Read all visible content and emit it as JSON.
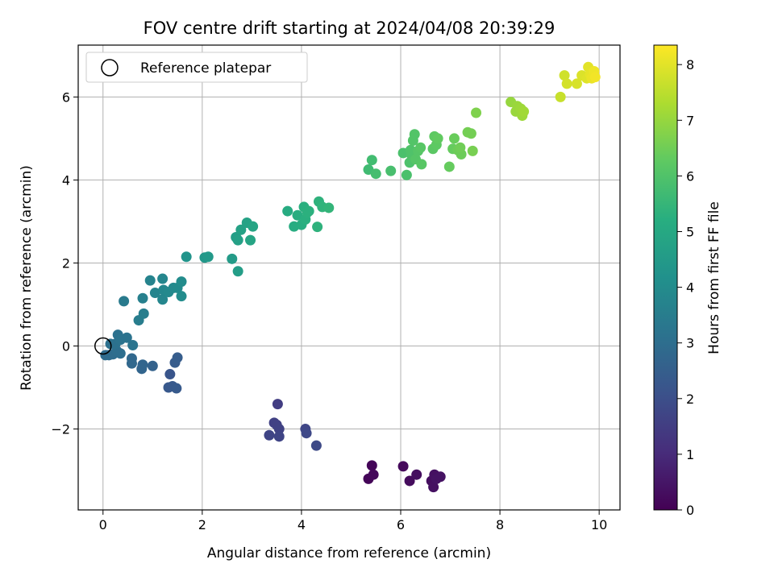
{
  "chart_data": {
    "type": "scatter",
    "title": "FOV centre drift starting at 2024/04/08 20:39:29",
    "xlabel": "Angular distance from reference (arcmin)",
    "ylabel": "Rotation from reference (arcmin)",
    "xlim": [
      -0.5,
      10.42
    ],
    "ylim": [
      -3.95,
      7.25
    ],
    "xticks": [
      0,
      2,
      4,
      6,
      8,
      10
    ],
    "yticks": [
      -2,
      0,
      2,
      4,
      6
    ],
    "grid": true,
    "colormap": "viridis",
    "colorbar": {
      "label": "Hours from first FF file",
      "range": [
        0,
        8.35
      ],
      "ticks": [
        0,
        1,
        2,
        3,
        4,
        5,
        6,
        7,
        8
      ]
    },
    "legend": {
      "placement": "top-left",
      "entries": [
        "Reference platepar"
      ]
    },
    "reference_point": {
      "x": 0,
      "y": 0
    },
    "points": [
      {
        "x": 5.35,
        "y": -3.2,
        "h": 0.1
      },
      {
        "x": 5.45,
        "y": -3.1,
        "h": 0.15
      },
      {
        "x": 5.42,
        "y": -2.88,
        "h": 0.1
      },
      {
        "x": 6.05,
        "y": -2.9,
        "h": 0.2
      },
      {
        "x": 6.18,
        "y": -3.25,
        "h": 0.25
      },
      {
        "x": 6.32,
        "y": -3.1,
        "h": 0.3
      },
      {
        "x": 6.62,
        "y": -3.25,
        "h": 0.3
      },
      {
        "x": 6.66,
        "y": -3.4,
        "h": 0.35
      },
      {
        "x": 6.68,
        "y": -3.1,
        "h": 0.35
      },
      {
        "x": 6.72,
        "y": -3.2,
        "h": 0.4
      },
      {
        "x": 6.8,
        "y": -3.15,
        "h": 0.4
      },
      {
        "x": 3.52,
        "y": -1.4,
        "h": 1.5
      },
      {
        "x": 3.45,
        "y": -1.85,
        "h": 1.6
      },
      {
        "x": 3.5,
        "y": -1.9,
        "h": 1.6
      },
      {
        "x": 3.55,
        "y": -2.0,
        "h": 1.65
      },
      {
        "x": 3.35,
        "y": -2.15,
        "h": 1.7
      },
      {
        "x": 3.55,
        "y": -2.18,
        "h": 1.7
      },
      {
        "x": 4.08,
        "y": -2.0,
        "h": 1.75
      },
      {
        "x": 4.1,
        "y": -2.1,
        "h": 1.8
      },
      {
        "x": 4.3,
        "y": -2.4,
        "h": 1.85
      },
      {
        "x": 1.35,
        "y": -0.68,
        "h": 2.2
      },
      {
        "x": 1.32,
        "y": -1.0,
        "h": 2.3
      },
      {
        "x": 1.4,
        "y": -0.97,
        "h": 2.3
      },
      {
        "x": 1.48,
        "y": -1.02,
        "h": 2.35
      },
      {
        "x": 1.45,
        "y": -0.4,
        "h": 2.4
      },
      {
        "x": 1.5,
        "y": -0.28,
        "h": 2.45
      },
      {
        "x": 1.0,
        "y": -0.48,
        "h": 2.6
      },
      {
        "x": 0.8,
        "y": -0.45,
        "h": 2.7
      },
      {
        "x": 0.78,
        "y": -0.55,
        "h": 2.7
      },
      {
        "x": 0.58,
        "y": -0.3,
        "h": 2.8
      },
      {
        "x": 0.58,
        "y": -0.42,
        "h": 2.8
      },
      {
        "x": 0.05,
        "y": -0.22,
        "h": 2.9
      },
      {
        "x": 0.12,
        "y": -0.22,
        "h": 2.9
      },
      {
        "x": 0.2,
        "y": -0.2,
        "h": 2.95
      },
      {
        "x": 0.28,
        "y": -0.12,
        "h": 3.0
      },
      {
        "x": 0.35,
        "y": -0.18,
        "h": 3.0
      },
      {
        "x": 0.15,
        "y": 0.05,
        "h": 3.05
      },
      {
        "x": 0.25,
        "y": 0.05,
        "h": 3.1
      },
      {
        "x": 0.3,
        "y": 0.27,
        "h": 3.1
      },
      {
        "x": 0.35,
        "y": 0.15,
        "h": 3.15
      },
      {
        "x": 0.48,
        "y": 0.2,
        "h": 3.15
      },
      {
        "x": 0.6,
        "y": 0.02,
        "h": 3.2
      },
      {
        "x": 0.42,
        "y": 1.08,
        "h": 3.4
      },
      {
        "x": 0.72,
        "y": 0.62,
        "h": 3.5
      },
      {
        "x": 0.82,
        "y": 0.78,
        "h": 3.55
      },
      {
        "x": 0.8,
        "y": 1.15,
        "h": 3.6
      },
      {
        "x": 0.95,
        "y": 1.58,
        "h": 3.7
      },
      {
        "x": 1.05,
        "y": 1.28,
        "h": 3.75
      },
      {
        "x": 1.2,
        "y": 1.62,
        "h": 3.8
      },
      {
        "x": 1.2,
        "y": 1.12,
        "h": 3.8
      },
      {
        "x": 1.22,
        "y": 1.35,
        "h": 3.85
      },
      {
        "x": 1.32,
        "y": 1.3,
        "h": 3.9
      },
      {
        "x": 1.42,
        "y": 1.4,
        "h": 3.9
      },
      {
        "x": 1.5,
        "y": 1.4,
        "h": 3.95
      },
      {
        "x": 1.58,
        "y": 1.55,
        "h": 4.0
      },
      {
        "x": 1.58,
        "y": 1.2,
        "h": 4.0
      },
      {
        "x": 1.68,
        "y": 2.15,
        "h": 4.3
      },
      {
        "x": 2.05,
        "y": 2.13,
        "h": 4.4
      },
      {
        "x": 2.12,
        "y": 2.15,
        "h": 4.45
      },
      {
        "x": 2.6,
        "y": 2.1,
        "h": 4.55
      },
      {
        "x": 2.72,
        "y": 1.8,
        "h": 4.6
      },
      {
        "x": 2.68,
        "y": 2.62,
        "h": 4.65
      },
      {
        "x": 2.72,
        "y": 2.55,
        "h": 4.7
      },
      {
        "x": 2.78,
        "y": 2.8,
        "h": 4.75
      },
      {
        "x": 2.9,
        "y": 2.97,
        "h": 4.8
      },
      {
        "x": 2.97,
        "y": 2.55,
        "h": 4.85
      },
      {
        "x": 3.02,
        "y": 2.88,
        "h": 4.85
      },
      {
        "x": 3.72,
        "y": 3.25,
        "h": 5.1
      },
      {
        "x": 3.85,
        "y": 2.88,
        "h": 5.15
      },
      {
        "x": 3.92,
        "y": 3.15,
        "h": 5.2
      },
      {
        "x": 4.0,
        "y": 2.92,
        "h": 5.2
      },
      {
        "x": 4.05,
        "y": 3.35,
        "h": 5.25
      },
      {
        "x": 4.08,
        "y": 3.05,
        "h": 5.25
      },
      {
        "x": 4.12,
        "y": 3.22,
        "h": 5.3
      },
      {
        "x": 4.15,
        "y": 3.25,
        "h": 5.3
      },
      {
        "x": 4.32,
        "y": 2.87,
        "h": 5.35
      },
      {
        "x": 4.35,
        "y": 3.48,
        "h": 5.35
      },
      {
        "x": 4.42,
        "y": 3.35,
        "h": 5.4
      },
      {
        "x": 4.55,
        "y": 3.33,
        "h": 5.45
      },
      {
        "x": 5.35,
        "y": 4.25,
        "h": 5.7
      },
      {
        "x": 5.42,
        "y": 4.48,
        "h": 5.75
      },
      {
        "x": 5.5,
        "y": 4.15,
        "h": 5.8
      },
      {
        "x": 5.8,
        "y": 4.22,
        "h": 5.85
      },
      {
        "x": 6.05,
        "y": 4.65,
        "h": 5.9
      },
      {
        "x": 6.12,
        "y": 4.12,
        "h": 5.9
      },
      {
        "x": 6.18,
        "y": 4.42,
        "h": 5.95
      },
      {
        "x": 6.2,
        "y": 4.72,
        "h": 6.0
      },
      {
        "x": 6.22,
        "y": 4.6,
        "h": 6.0
      },
      {
        "x": 6.25,
        "y": 4.95,
        "h": 6.05
      },
      {
        "x": 6.28,
        "y": 5.1,
        "h": 6.05
      },
      {
        "x": 6.3,
        "y": 4.5,
        "h": 6.1
      },
      {
        "x": 6.35,
        "y": 4.7,
        "h": 6.1
      },
      {
        "x": 6.4,
        "y": 4.78,
        "h": 6.15
      },
      {
        "x": 6.42,
        "y": 4.38,
        "h": 6.15
      },
      {
        "x": 6.65,
        "y": 4.75,
        "h": 6.2
      },
      {
        "x": 6.68,
        "y": 5.05,
        "h": 6.25
      },
      {
        "x": 6.72,
        "y": 4.85,
        "h": 6.25
      },
      {
        "x": 6.75,
        "y": 5.0,
        "h": 6.3
      },
      {
        "x": 6.98,
        "y": 4.32,
        "h": 6.35
      },
      {
        "x": 7.05,
        "y": 4.75,
        "h": 6.35
      },
      {
        "x": 7.08,
        "y": 5.0,
        "h": 6.4
      },
      {
        "x": 7.15,
        "y": 4.72,
        "h": 6.45
      },
      {
        "x": 7.22,
        "y": 4.62,
        "h": 6.45
      },
      {
        "x": 7.2,
        "y": 4.78,
        "h": 6.5
      },
      {
        "x": 7.35,
        "y": 5.15,
        "h": 6.55
      },
      {
        "x": 7.42,
        "y": 5.12,
        "h": 6.55
      },
      {
        "x": 7.45,
        "y": 4.7,
        "h": 6.6
      },
      {
        "x": 7.52,
        "y": 5.62,
        "h": 6.7
      },
      {
        "x": 8.22,
        "y": 5.88,
        "h": 7.0
      },
      {
        "x": 8.32,
        "y": 5.65,
        "h": 7.05
      },
      {
        "x": 8.35,
        "y": 5.78,
        "h": 7.05
      },
      {
        "x": 8.42,
        "y": 5.72,
        "h": 7.1
      },
      {
        "x": 8.45,
        "y": 5.55,
        "h": 7.1
      },
      {
        "x": 8.48,
        "y": 5.65,
        "h": 7.15
      },
      {
        "x": 9.22,
        "y": 6.0,
        "h": 7.65
      },
      {
        "x": 9.3,
        "y": 6.52,
        "h": 7.75
      },
      {
        "x": 9.35,
        "y": 6.32,
        "h": 7.8
      },
      {
        "x": 9.55,
        "y": 6.32,
        "h": 7.85
      },
      {
        "x": 9.65,
        "y": 6.52,
        "h": 7.9
      },
      {
        "x": 9.75,
        "y": 6.45,
        "h": 7.95
      },
      {
        "x": 9.78,
        "y": 6.72,
        "h": 8.0
      },
      {
        "x": 9.82,
        "y": 6.55,
        "h": 8.05
      },
      {
        "x": 9.85,
        "y": 6.45,
        "h": 8.1
      },
      {
        "x": 9.9,
        "y": 6.62,
        "h": 8.15
      },
      {
        "x": 9.92,
        "y": 6.48,
        "h": 8.2
      }
    ]
  }
}
